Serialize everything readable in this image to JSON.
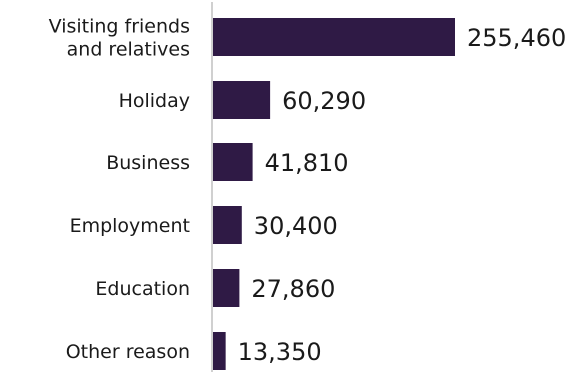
{
  "chart_data": {
    "type": "bar",
    "orientation": "horizontal",
    "categories": [
      [
        "Visiting friends",
        "and relatives"
      ],
      [
        "Holiday"
      ],
      [
        "Business"
      ],
      [
        "Employment"
      ],
      [
        "Education"
      ],
      [
        "Other reason"
      ]
    ],
    "values": [
      255460,
      60290,
      41810,
      30400,
      27860,
      13350
    ],
    "value_labels": [
      "255,460",
      "60,290",
      "41,810",
      "30,400",
      "27,860",
      "13,350"
    ],
    "title": "",
    "xlabel": "",
    "ylabel": "",
    "xlim": [
      0,
      255460
    ],
    "grid": false,
    "legend": "none",
    "bar_color": "#2f1a45",
    "axis_color": "#d0d0d0"
  }
}
